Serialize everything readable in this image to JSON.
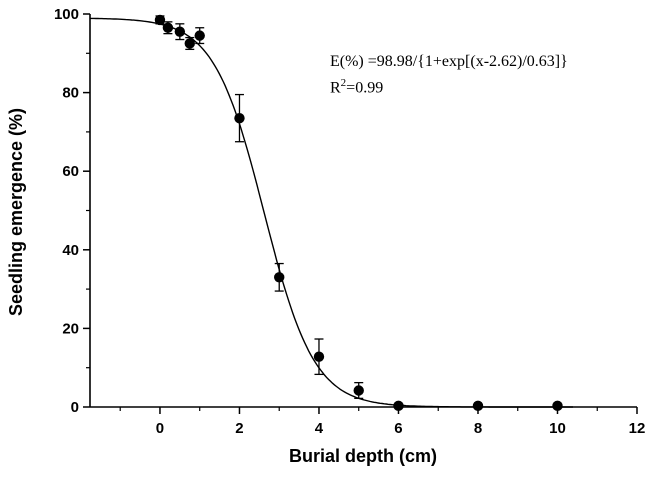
{
  "chart_data": {
    "type": "scatter",
    "title": "",
    "xlabel": "Burial depth (cm)",
    "ylabel": "Seedling emergence (%)",
    "xlim": [
      -1.76,
      12
    ],
    "ylim": [
      0,
      100
    ],
    "xticks": [
      0,
      2,
      4,
      6,
      8,
      10,
      12
    ],
    "xminor": [
      -1,
      1,
      3,
      5,
      7,
      9,
      11
    ],
    "yticks": [
      0,
      20,
      40,
      60,
      80,
      100
    ],
    "yminor": [
      10,
      30,
      50,
      70,
      90
    ],
    "grid": "off",
    "legend": "none",
    "curve_xmax": 10.4,
    "fit": {
      "a": 98.98,
      "x0": 2.62,
      "b": 0.63
    },
    "annotation": {
      "equation": "E(%) =98.98/{1+exp[(x-2.62)/0.63]}",
      "r2_base": "R",
      "r2_sup": "2",
      "r2_rest": "=0.99"
    },
    "points": [
      {
        "x": 0,
        "y": 98.5,
        "err": 1.0
      },
      {
        "x": 0.2,
        "y": 96.5,
        "err": 1.5
      },
      {
        "x": 0.5,
        "y": 95.5,
        "err": 2.0
      },
      {
        "x": 0.75,
        "y": 92.5,
        "err": 1.5
      },
      {
        "x": 1,
        "y": 94.5,
        "err": 2.0
      },
      {
        "x": 2,
        "y": 73.5,
        "err": 6.0
      },
      {
        "x": 3,
        "y": 33.0,
        "err": 3.5
      },
      {
        "x": 4,
        "y": 12.8,
        "err": 4.5
      },
      {
        "x": 5,
        "y": 4.2,
        "err": 2.0
      },
      {
        "x": 6,
        "y": 0.3,
        "err": 0
      },
      {
        "x": 8,
        "y": 0.3,
        "err": 0
      },
      {
        "x": 10,
        "y": 0.3,
        "err": 0
      }
    ]
  }
}
